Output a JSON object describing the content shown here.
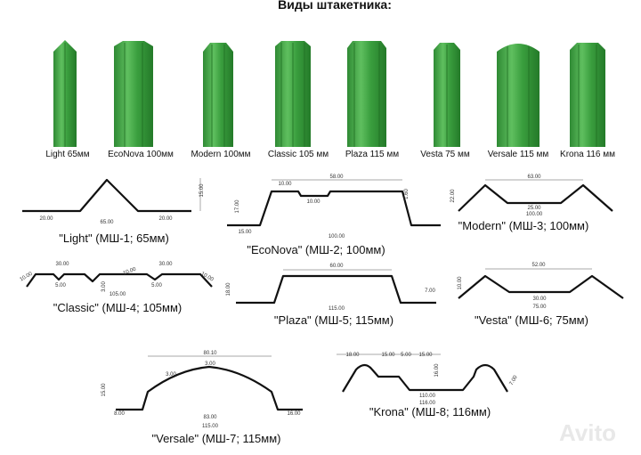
{
  "title": "Виды штакетника:",
  "pickets": [
    {
      "label": "Light 65мм"
    },
    {
      "label": "EcoNova 100мм"
    },
    {
      "label": "Modern 100мм"
    },
    {
      "label": "Classic 105 мм"
    },
    {
      "label": "Plaza 115 мм"
    },
    {
      "label": "Vesta 75 мм"
    },
    {
      "label": "Versale 115 мм"
    },
    {
      "label": "Krona 116 мм"
    }
  ],
  "profiles": [
    {
      "caption": "\"Light\" (МШ-1; 65мм)",
      "dims": [
        "15.00",
        "20.00",
        "65.00",
        "20.00"
      ]
    },
    {
      "caption": "\"EcoNova\" (МШ-2; 100мм)",
      "dims": [
        "58.00",
        "10.00",
        "10.00",
        "1.60",
        "17.00",
        "15.00",
        "100.00"
      ]
    },
    {
      "caption": "\"Modern\" (МШ-3; 100мм)",
      "dims": [
        "63.00",
        "22.00",
        "25.00",
        "100.00"
      ]
    },
    {
      "caption": "\"Classic\" (МШ-4; 105мм)",
      "dims": [
        "30.00",
        "30.00",
        "10.00",
        "5.00",
        "3.00",
        "10.00",
        "5.00",
        "10.00",
        "105.00"
      ]
    },
    {
      "caption": "\"Plaza\" (МШ-5; 115мм)",
      "dims": [
        "60.00",
        "18.00",
        "7.00",
        "115.00"
      ]
    },
    {
      "caption": "\"Vesta\" (МШ-6; 75мм)",
      "dims": [
        "52.00",
        "10.00",
        "30.00",
        "75.00"
      ]
    },
    {
      "caption": "\"Versale\" (МШ-7; 115мм)",
      "dims": [
        "80.10",
        "3.00",
        "3.00",
        "15.00",
        "8.00",
        "83.00",
        "16.00",
        "115.00"
      ]
    },
    {
      "caption": "\"Krona\" (МШ-8; 116мм)",
      "dims": [
        "18.00",
        "15.00",
        "5.00",
        "15.00",
        "16.00",
        "110.00",
        "7.00",
        "116.00"
      ]
    }
  ],
  "watermark": "Avito"
}
